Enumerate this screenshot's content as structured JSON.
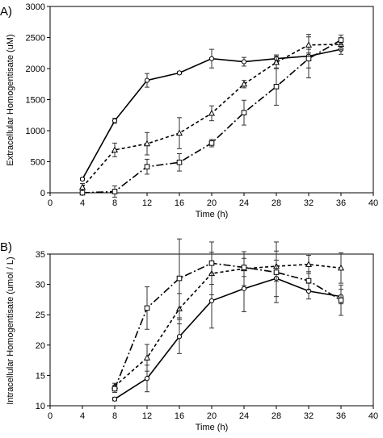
{
  "chart_data": [
    {
      "type": "line",
      "panel_label": "A)",
      "xlabel": "Time (h)",
      "ylabel": "Extracellular Homogentisate (uM)",
      "xlim": [
        0,
        40
      ],
      "ylim": [
        0,
        3000
      ],
      "xticks": [
        0,
        4,
        8,
        12,
        16,
        20,
        24,
        28,
        32,
        36,
        40
      ],
      "yticks": [
        0,
        500,
        1000,
        1500,
        2000,
        2500,
        3000
      ],
      "grid": false,
      "legend": "none",
      "series": [
        {
          "marker": "circle",
          "line": "solid",
          "x": [
            4,
            8,
            12,
            16,
            20,
            24,
            28,
            32,
            36
          ],
          "y": [
            220,
            1160,
            1810,
            1930,
            2160,
            2110,
            2160,
            2200,
            2310
          ],
          "err": [
            20,
            40,
            110,
            20,
            150,
            70,
            60,
            350,
            80
          ]
        },
        {
          "marker": "triangle",
          "line": "dotted",
          "x": [
            4,
            8,
            12,
            16,
            20,
            24,
            28,
            32,
            36
          ],
          "y": [
            90,
            690,
            790,
            960,
            1280,
            1750,
            2100,
            2380,
            2390
          ],
          "err": [
            60,
            110,
            180,
            250,
            120,
            60,
            100,
            130,
            90
          ]
        },
        {
          "marker": "square",
          "line": "dashdot",
          "x": [
            4,
            8,
            12,
            16,
            20,
            24,
            28,
            32,
            36
          ],
          "y": [
            0,
            20,
            420,
            490,
            800,
            1290,
            1710,
            2160,
            2460
          ],
          "err": [
            0,
            90,
            120,
            140,
            60,
            200,
            300,
            150,
            80
          ]
        }
      ]
    },
    {
      "type": "line",
      "panel_label": "B)",
      "xlabel": "Time (h)",
      "ylabel": "Intracellular Homogentisate (umol / L)",
      "xlim": [
        0,
        40
      ],
      "ylim": [
        10,
        35
      ],
      "xticks": [
        0,
        4,
        8,
        12,
        16,
        20,
        24,
        28,
        32,
        36,
        40
      ],
      "yticks": [
        10,
        15,
        20,
        25,
        30,
        35
      ],
      "grid": false,
      "legend": "none",
      "series": [
        {
          "marker": "circle",
          "line": "solid",
          "x": [
            8,
            12,
            16,
            20,
            24,
            28,
            32,
            36
          ],
          "y": [
            11.1,
            14.5,
            21.4,
            27.3,
            29.3,
            31.0,
            28.9,
            28.0
          ],
          "err": [
            0.3,
            2.2,
            2.8,
            4.5,
            3.8,
            3.0,
            1.3,
            1.2
          ]
        },
        {
          "marker": "triangle",
          "line": "dotted",
          "x": [
            8,
            12,
            16,
            20,
            24,
            28,
            32,
            36
          ],
          "y": [
            13.2,
            17.9,
            26.0,
            31.8,
            32.6,
            33.0,
            33.3,
            32.7
          ],
          "err": [
            0.5,
            2.2,
            2.5,
            3.5,
            2.8,
            2.5,
            1.5,
            2.5
          ]
        },
        {
          "marker": "square",
          "line": "dashdot",
          "x": [
            8,
            12,
            16,
            20,
            24,
            28,
            32,
            36
          ],
          "y": [
            12.8,
            26.1,
            31.0,
            33.5,
            32.8,
            32.0,
            30.6,
            27.4
          ],
          "err": [
            0.6,
            3.5,
            6.5,
            3.5,
            1.5,
            5.0,
            1.5,
            2.5
          ]
        }
      ]
    }
  ]
}
